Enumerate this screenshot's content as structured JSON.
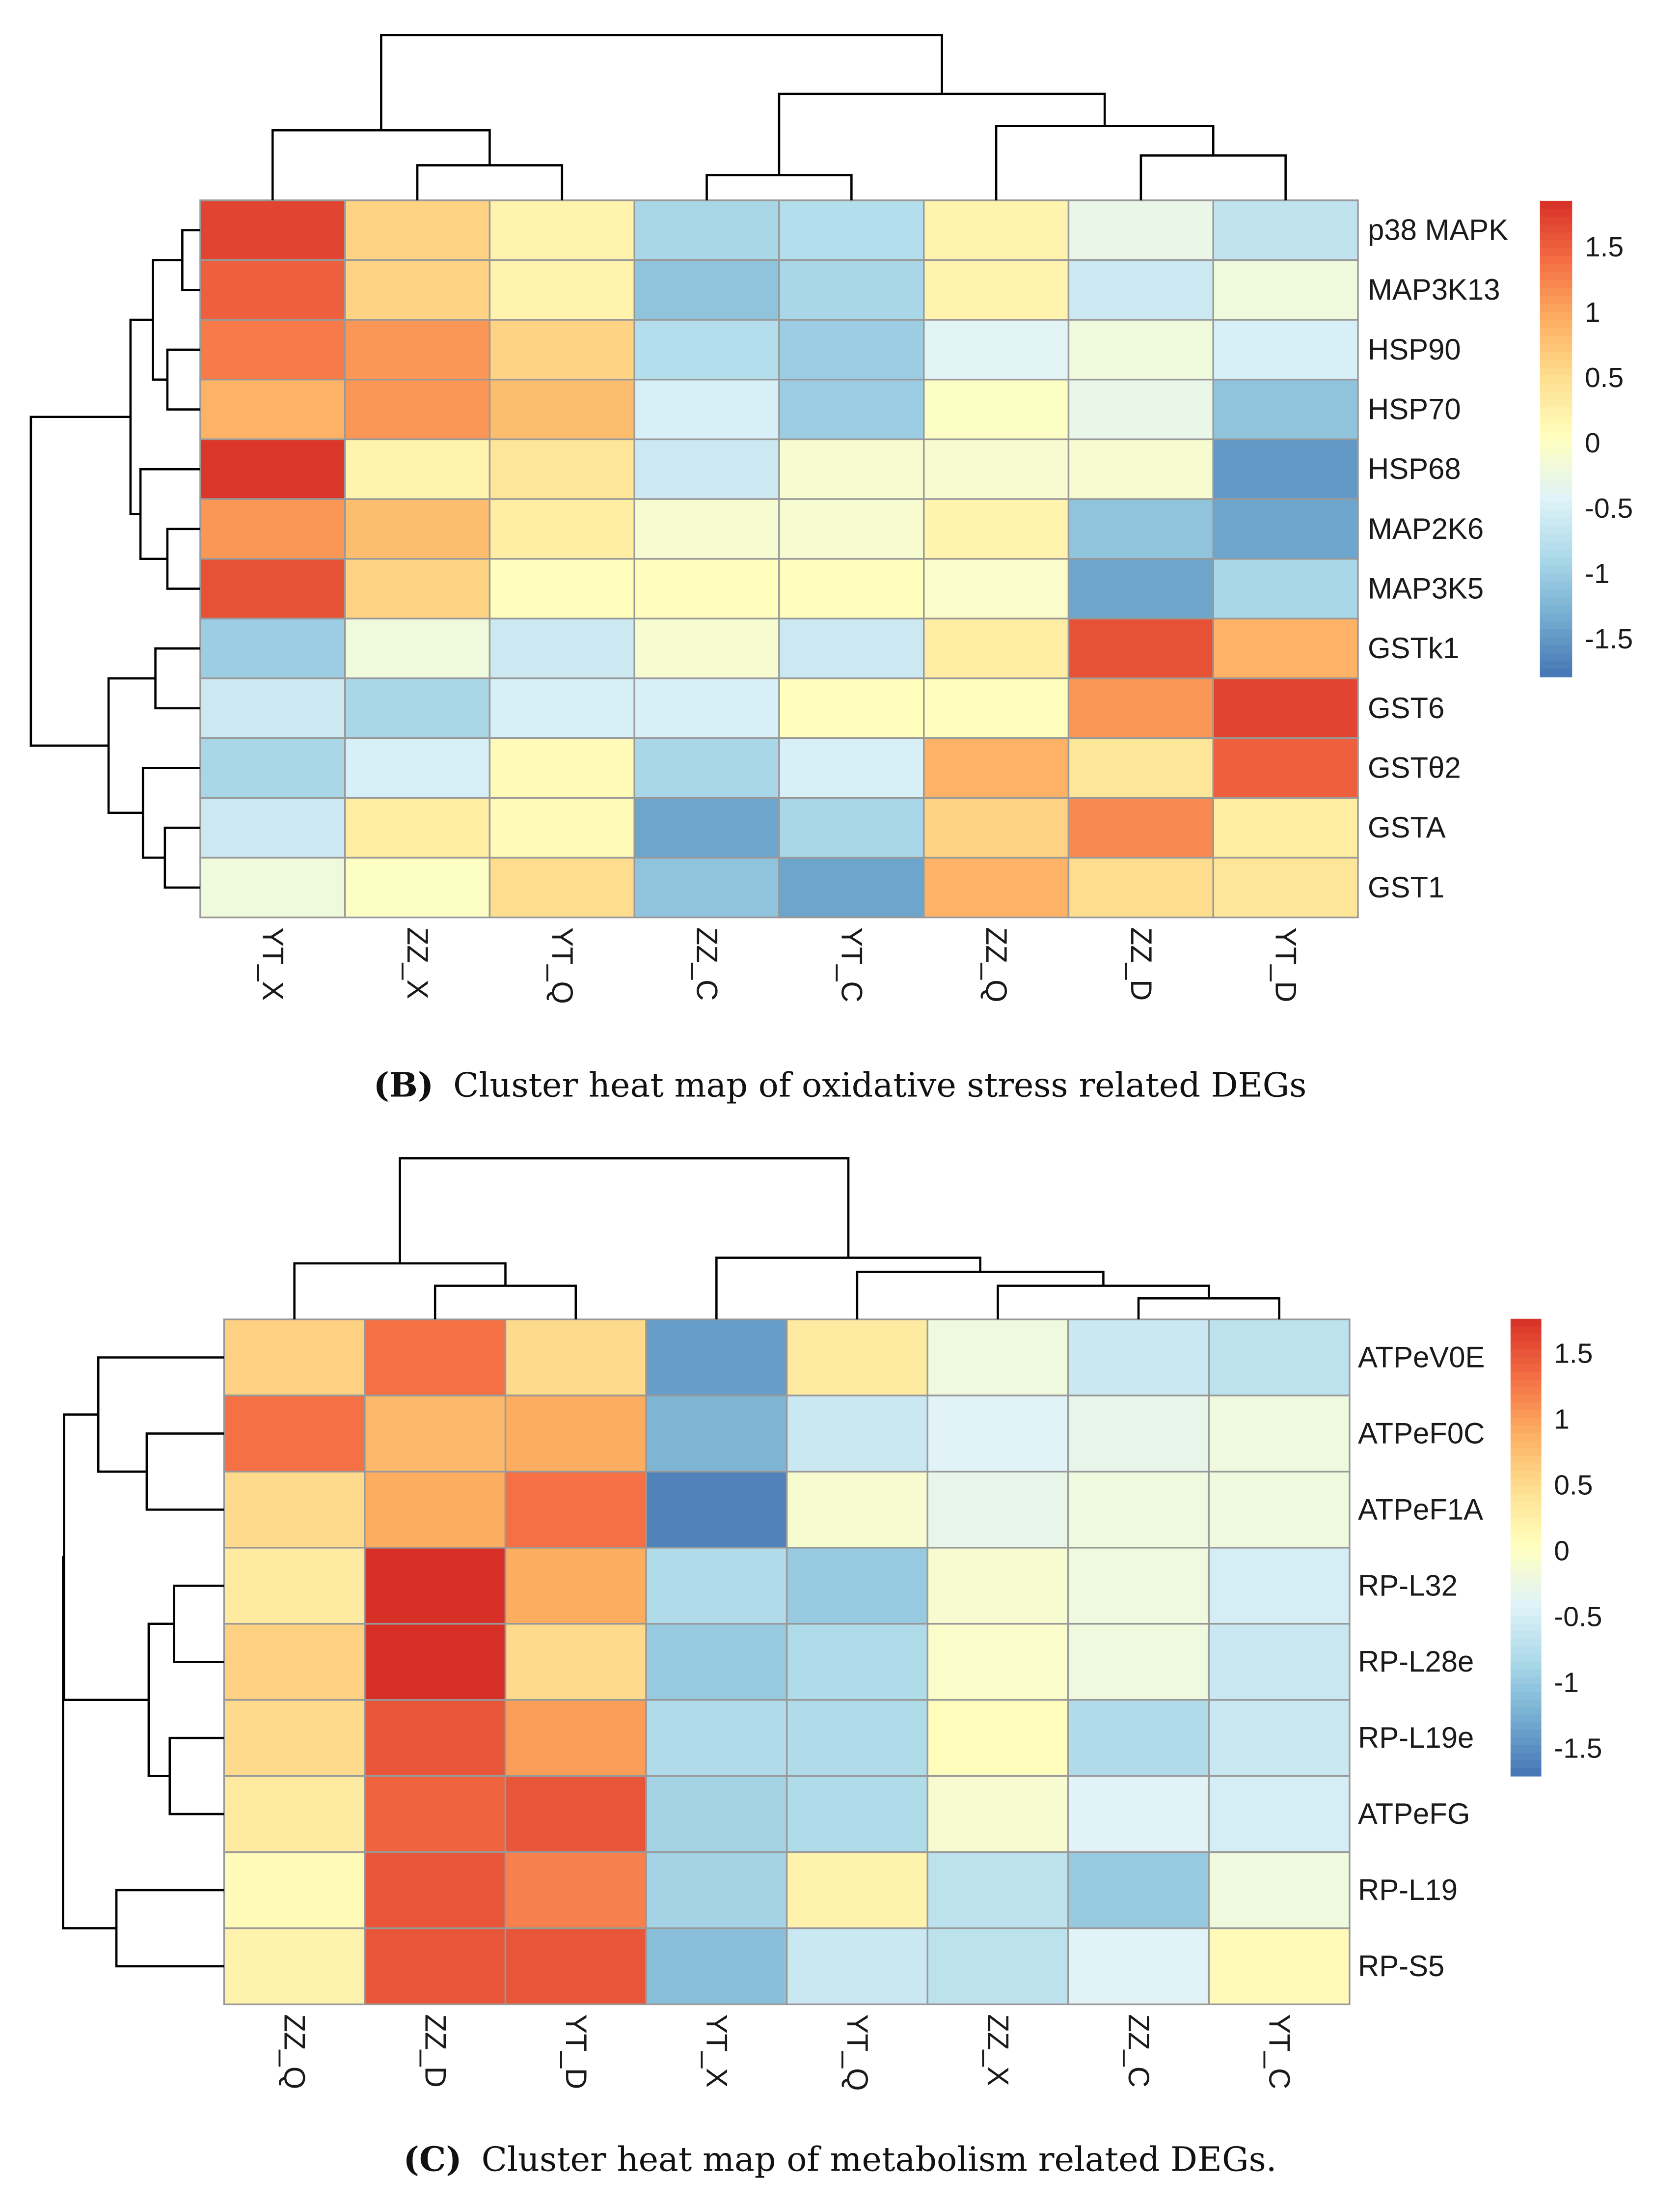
{
  "palette": [
    "#4575b4",
    "#74add1",
    "#abd9e9",
    "#e0f3f8",
    "#ffffbf",
    "#fee090",
    "#fdae61",
    "#f46d43",
    "#d73027"
  ],
  "chart_data": [
    {
      "type": "heatmap",
      "caption_tag": "(B)",
      "caption": "Cluster heat map of oxidative stress related DEGs",
      "columns": [
        "YT_X",
        "ZZ_X",
        "YT_Q",
        "ZZ_C",
        "YT_C",
        "ZZ_Q",
        "ZZ_D",
        "YT_D"
      ],
      "rows": [
        "p38 MAPK",
        "MAP3K13",
        "HSP90",
        "HSP70",
        "HSP68",
        "MAP2K6",
        "MAP3K5",
        "GSTk1",
        "GST6",
        "GSTθ2",
        "GSTA",
        "GST1"
      ],
      "values": [
        [
          1.7,
          0.6,
          0.2,
          -0.9,
          -0.8,
          0.2,
          -0.3,
          -0.7
        ],
        [
          1.5,
          0.6,
          0.2,
          -1.1,
          -0.9,
          0.2,
          -0.6,
          -0.2
        ],
        [
          1.3,
          1.1,
          0.6,
          -0.8,
          -1.0,
          -0.4,
          -0.2,
          -0.5
        ],
        [
          0.9,
          1.1,
          0.8,
          -0.5,
          -1.0,
          0.0,
          -0.3,
          -1.1
        ],
        [
          1.8,
          0.2,
          0.4,
          -0.6,
          -0.1,
          -0.1,
          -0.1,
          -1.5
        ],
        [
          1.1,
          0.8,
          0.3,
          -0.1,
          -0.1,
          0.2,
          -1.1,
          -1.4
        ],
        [
          1.6,
          0.6,
          0.05,
          0.05,
          0.05,
          -0.05,
          -1.4,
          -0.9
        ],
        [
          -1.0,
          -0.2,
          -0.6,
          -0.1,
          -0.6,
          0.3,
          1.6,
          0.9
        ],
        [
          -0.6,
          -0.9,
          -0.5,
          -0.5,
          0.05,
          0.05,
          1.1,
          1.7
        ],
        [
          -0.9,
          -0.5,
          0.1,
          -0.9,
          -0.5,
          0.9,
          0.4,
          1.5
        ],
        [
          -0.6,
          0.3,
          0.1,
          -1.4,
          -0.9,
          0.6,
          1.2,
          0.3
        ],
        [
          -0.2,
          0.0,
          0.5,
          -1.1,
          -1.4,
          0.9,
          0.5,
          0.4
        ]
      ],
      "color_range": [
        -1.79,
        1.85
      ],
      "legend_ticks": [
        "1.5",
        "1",
        "0.5",
        "0",
        "-0.5",
        "-1",
        "-1.5"
      ],
      "legend_tick_values": [
        1.5,
        1,
        0.5,
        0,
        -0.5,
        -1,
        -1.5
      ],
      "col_tree": [
        118,
        [
          50,
          "YT_X",
          [
            25,
            "ZZ_X",
            "YT_Q"
          ]
        ],
        [
          76,
          [
            18,
            "ZZ_C",
            "YT_C"
          ],
          [
            53,
            "ZZ_Q",
            [
              32,
              "ZZ_D",
              "YT_D"
            ]
          ]
        ]
      ],
      "row_tree": [
        340,
        [
          140,
          [
            95,
            [
              36,
              "p38 MAPK",
              "MAP3K13"
            ],
            [
              66,
              "HSP90",
              "HSP70"
            ]
          ],
          [
            120,
            "HSP68",
            [
              66,
              "MAP2K6",
              "MAP3K5"
            ]
          ]
        ],
        [
          184,
          [
            90,
            "GSTk1",
            "GST6"
          ],
          [
            115,
            "GSTθ2",
            [
              71,
              "GSTA",
              "GST1"
            ]
          ]
        ]
      ]
    },
    {
      "type": "heatmap",
      "caption_tag": "(C)",
      "caption": "Cluster heat map of metabolism related DEGs.",
      "columns": [
        "ZZ_Q",
        "ZZ_D",
        "YT_D",
        "YT_X",
        "YT_Q",
        "ZZ_X",
        "ZZ_C",
        "YT_C"
      ],
      "rows": [
        "ATPeV0E",
        "ATPeF0C",
        "ATPeF1A",
        "RP-L32",
        "RP-L28e",
        "RP-L19e",
        "ATPeFG",
        "RP-L19",
        "RP-S5"
      ],
      "values": [
        [
          0.6,
          1.3,
          0.5,
          -1.4,
          0.3,
          -0.2,
          -0.6,
          -0.7
        ],
        [
          1.3,
          0.8,
          0.9,
          -1.2,
          -0.6,
          -0.4,
          -0.3,
          -0.2
        ],
        [
          0.5,
          0.9,
          1.3,
          -1.6,
          -0.1,
          -0.3,
          -0.2,
          -0.2
        ],
        [
          0.3,
          1.8,
          0.9,
          -0.8,
          -1.0,
          -0.1,
          -0.2,
          -0.5
        ],
        [
          0.6,
          1.8,
          0.5,
          -1.0,
          -0.8,
          -0.05,
          -0.2,
          -0.6
        ],
        [
          0.5,
          1.5,
          1.0,
          -0.8,
          -0.8,
          0.05,
          -0.8,
          -0.6
        ],
        [
          0.3,
          1.4,
          1.5,
          -0.9,
          -0.8,
          -0.1,
          -0.4,
          -0.5
        ],
        [
          0.1,
          1.5,
          1.2,
          -0.9,
          0.2,
          -0.7,
          -1.0,
          -0.2
        ],
        [
          0.2,
          1.5,
          1.5,
          -1.1,
          -0.6,
          -0.7,
          -0.4,
          0.1
        ]
      ],
      "color_range": [
        -1.71,
        1.76
      ],
      "legend_ticks": [
        "1.5",
        "1",
        "0.5",
        "0",
        "-0.5",
        "-1",
        "-1.5"
      ],
      "legend_tick_values": [
        1.5,
        1,
        0.5,
        0,
        -0.5,
        -1,
        -1.5
      ],
      "col_tree": [
        115,
        [
          40,
          "ZZ_Q",
          [
            24,
            "ZZ_D",
            "YT_D"
          ]
        ],
        [
          44,
          "YT_X",
          [
            34,
            "YT_Q",
            [
              24,
              "ZZ_X",
              [
                15,
                "ZZ_C",
                "YT_C"
              ]
            ]
          ]
        ]
      ],
      "row_tree": [
        329,
        [
          327,
          [
            257,
            "ATPeV0E",
            [
              158,
              "ATPeF0C",
              "ATPeF1A"
            ]
          ],
          [
            154,
            [
              102,
              "RP-L32",
              "RP-L28e"
            ],
            [
              111,
              "RP-L19e",
              "ATPeFG"
            ]
          ]
        ],
        [
          220,
          "RP-L19",
          "RP-S5"
        ]
      ]
    }
  ]
}
